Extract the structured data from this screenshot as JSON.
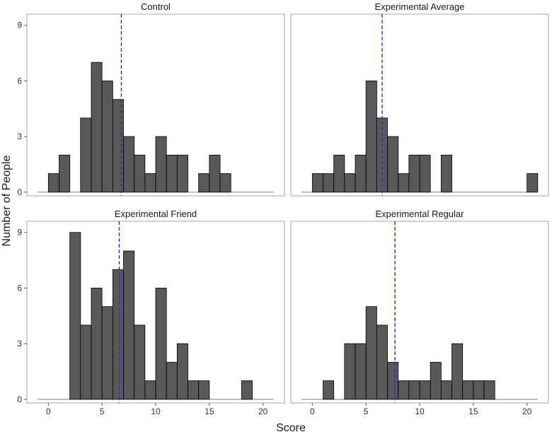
{
  "chart_data": {
    "type": "bar",
    "xlabel": "Score",
    "ylabel": "Number of People",
    "xlim": [
      -2,
      22
    ],
    "ylim": [
      -0.2,
      9.6
    ],
    "xticks": [
      0,
      5,
      10,
      15,
      20
    ],
    "yticks": [
      0,
      3,
      6,
      9
    ],
    "bin_width": 1,
    "bar_color": "#595959",
    "bar_edge_color": "#000000",
    "mean_line_color": "#2a2ae6",
    "baseline_color": "#808080",
    "panels": [
      {
        "title": "Control",
        "mean": 6.8,
        "bins": [
          {
            "x": 0,
            "count": 1
          },
          {
            "x": 1,
            "count": 2
          },
          {
            "x": 3,
            "count": 4
          },
          {
            "x": 4,
            "count": 7
          },
          {
            "x": 5,
            "count": 6
          },
          {
            "x": 6,
            "count": 5
          },
          {
            "x": 7,
            "count": 3
          },
          {
            "x": 8,
            "count": 2
          },
          {
            "x": 9,
            "count": 1
          },
          {
            "x": 10,
            "count": 3
          },
          {
            "x": 11,
            "count": 2
          },
          {
            "x": 12,
            "count": 2
          },
          {
            "x": 14,
            "count": 1
          },
          {
            "x": 15,
            "count": 2
          },
          {
            "x": 16,
            "count": 1
          }
        ]
      },
      {
        "title": "Experimental Average",
        "mean": 6.5,
        "bins": [
          {
            "x": 0,
            "count": 1
          },
          {
            "x": 1,
            "count": 1
          },
          {
            "x": 2,
            "count": 2
          },
          {
            "x": 3,
            "count": 1
          },
          {
            "x": 4,
            "count": 2
          },
          {
            "x": 5,
            "count": 6
          },
          {
            "x": 6,
            "count": 4
          },
          {
            "x": 7,
            "count": 3
          },
          {
            "x": 8,
            "count": 1
          },
          {
            "x": 9,
            "count": 2
          },
          {
            "x": 10,
            "count": 2
          },
          {
            "x": 12,
            "count": 2
          },
          {
            "x": 20,
            "count": 1
          }
        ]
      },
      {
        "title": "Experimental Friend",
        "mean": 6.6,
        "bins": [
          {
            "x": 2,
            "count": 9
          },
          {
            "x": 3,
            "count": 4
          },
          {
            "x": 4,
            "count": 6
          },
          {
            "x": 5,
            "count": 5
          },
          {
            "x": 6,
            "count": 7
          },
          {
            "x": 7,
            "count": 8
          },
          {
            "x": 8,
            "count": 4
          },
          {
            "x": 9,
            "count": 1
          },
          {
            "x": 10,
            "count": 6
          },
          {
            "x": 11,
            "count": 2
          },
          {
            "x": 12,
            "count": 3
          },
          {
            "x": 13,
            "count": 1
          },
          {
            "x": 14,
            "count": 1
          },
          {
            "x": 18,
            "count": 1
          }
        ]
      },
      {
        "title": "Experimental Regular",
        "mean": 7.7,
        "bins": [
          {
            "x": 1,
            "count": 1
          },
          {
            "x": 3,
            "count": 3
          },
          {
            "x": 4,
            "count": 3
          },
          {
            "x": 5,
            "count": 5
          },
          {
            "x": 6,
            "count": 4
          },
          {
            "x": 7,
            "count": 2
          },
          {
            "x": 8,
            "count": 1
          },
          {
            "x": 9,
            "count": 1
          },
          {
            "x": 10,
            "count": 1
          },
          {
            "x": 11,
            "count": 2
          },
          {
            "x": 12,
            "count": 1
          },
          {
            "x": 13,
            "count": 3
          },
          {
            "x": 14,
            "count": 1
          },
          {
            "x": 15,
            "count": 1
          },
          {
            "x": 16,
            "count": 1
          }
        ]
      }
    ]
  }
}
